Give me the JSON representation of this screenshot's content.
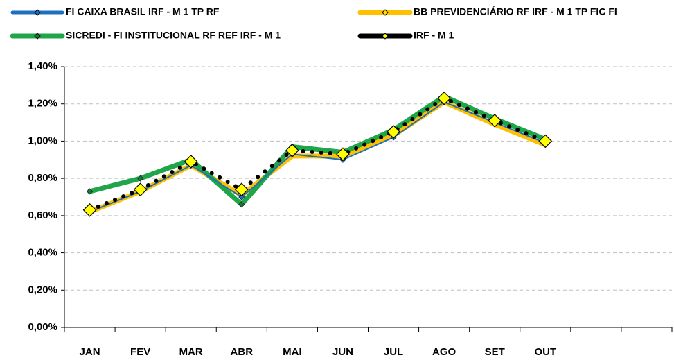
{
  "chart_data": {
    "type": "line",
    "categories": [
      "JAN",
      "FEV",
      "MAR",
      "ABR",
      "MAI",
      "JUN",
      "JUL",
      "AGO",
      "SET",
      "OUT",
      null,
      null
    ],
    "series": [
      {
        "name": "FI CAIXA BRASIL IRF - M 1 TP RF",
        "color": "#1f6fbf",
        "marker_color": "#1f6fbf",
        "values": [
          0.62,
          0.73,
          0.87,
          0.7,
          0.93,
          0.9,
          1.02,
          1.21,
          1.1,
          0.99,
          null,
          null
        ]
      },
      {
        "name": "BB PREVIDENCIÁRIO RF IRF - M 1 TP FIC FI",
        "color": "#ffc000",
        "marker_color": "#ffe600",
        "values": [
          0.62,
          0.73,
          0.87,
          0.71,
          0.92,
          0.92,
          1.03,
          1.21,
          1.09,
          0.98,
          null,
          null
        ]
      },
      {
        "name": "SICREDI - FI INSTITUCIONAL RF REF IRF - M 1",
        "color": "#1fa64a",
        "marker_color": "#1b7a3a",
        "values": [
          0.73,
          0.8,
          0.9,
          0.66,
          0.97,
          0.94,
          1.06,
          1.24,
          1.12,
          1.01,
          null,
          null
        ]
      },
      {
        "name": "IRF - M 1",
        "color": "#000000",
        "marker_color": "#ffff00",
        "values": [
          0.63,
          0.74,
          0.89,
          0.74,
          0.95,
          0.93,
          1.05,
          1.23,
          1.11,
          1.0,
          null,
          null
        ]
      }
    ],
    "ylim": [
      0,
      1.4
    ],
    "yticks": [
      {
        "value": 0,
        "label": "0,00%"
      },
      {
        "value": 0.2,
        "label": "0,20%"
      },
      {
        "value": 0.4,
        "label": "0,40%"
      },
      {
        "value": 0.6,
        "label": "0,60%"
      },
      {
        "value": 0.8,
        "label": "0,80%"
      },
      {
        "value": 1.0,
        "label": "1,00%"
      },
      {
        "value": 1.2,
        "label": "1,20%"
      },
      {
        "value": 1.4,
        "label": "1,40%"
      }
    ],
    "grid": true
  }
}
